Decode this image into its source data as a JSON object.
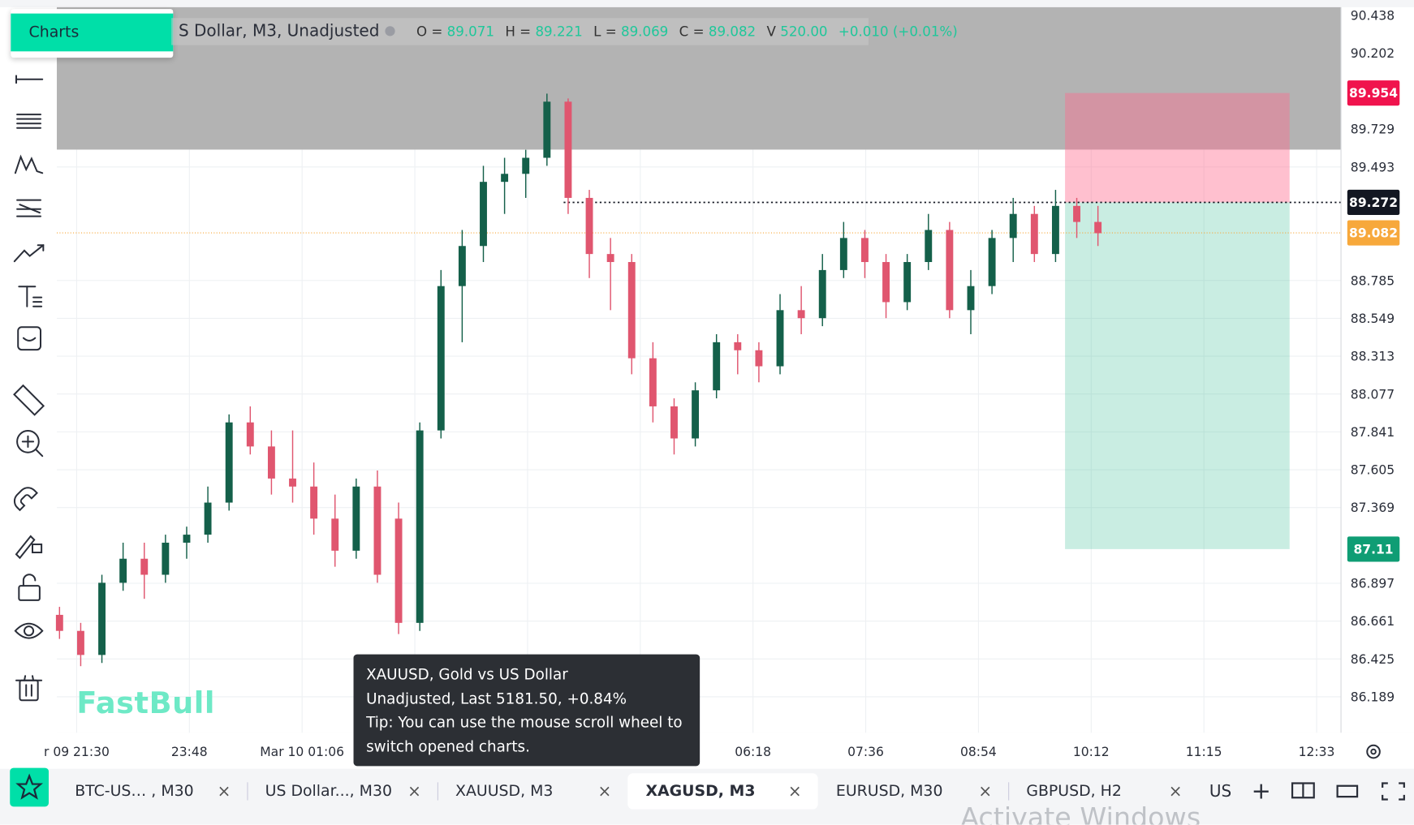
{
  "menu": {
    "item": "Charts"
  },
  "legend": {
    "symbol": "S Dollar, M3, Unadjusted",
    "ohlc": [
      {
        "key": "O =",
        "value": "89.071"
      },
      {
        "key": "H =",
        "value": "89.221"
      },
      {
        "key": "L =",
        "value": "89.069"
      },
      {
        "key": "C =",
        "value": "89.082"
      },
      {
        "key": "V",
        "value": "520.00"
      }
    ],
    "change": "+0.010 (+0.01%)"
  },
  "price_axis": {
    "range": [
      85.965,
      90.489
    ],
    "ticks": [
      90.438,
      90.202,
      89.729,
      89.493,
      88.785,
      88.549,
      88.313,
      88.077,
      87.841,
      87.605,
      87.369,
      86.897,
      86.661,
      86.425,
      86.189
    ]
  },
  "time_axis": {
    "labels": [
      "r 09 21:30",
      "23:48",
      "Mar 10 01:06",
      null,
      null,
      null,
      "06:18",
      "07:36",
      "08:54",
      "10:12",
      "11:15",
      "12:33"
    ]
  },
  "badges": [
    {
      "value": 89.954,
      "color": "#f0134d",
      "text_color": "#ffffff"
    },
    {
      "value": 89.272,
      "color": "#131722",
      "text_color": "#ffffff"
    },
    {
      "value": 89.082,
      "color": "#f7a83b",
      "text_color": "#ffffff"
    },
    {
      "value": 87.11,
      "color": "#0f9d74",
      "text_color": "#ffffff"
    }
  ],
  "candles": [
    [
      86.7,
      86.75,
      86.55,
      86.6
    ],
    [
      86.6,
      86.65,
      86.38,
      86.45
    ],
    [
      86.45,
      86.95,
      86.4,
      86.9
    ],
    [
      86.9,
      87.15,
      86.85,
      87.05
    ],
    [
      87.05,
      87.15,
      86.8,
      86.95
    ],
    [
      86.95,
      87.2,
      86.9,
      87.15
    ],
    [
      87.15,
      87.25,
      87.05,
      87.2
    ],
    [
      87.2,
      87.5,
      87.15,
      87.4
    ],
    [
      87.4,
      87.95,
      87.35,
      87.9
    ],
    [
      87.9,
      88.0,
      87.7,
      87.75
    ],
    [
      87.75,
      87.85,
      87.45,
      87.55
    ],
    [
      87.55,
      87.85,
      87.4,
      87.5
    ],
    [
      87.5,
      87.65,
      87.2,
      87.3
    ],
    [
      87.3,
      87.45,
      87.0,
      87.1
    ],
    [
      87.1,
      87.55,
      87.05,
      87.5
    ],
    [
      87.5,
      87.6,
      86.9,
      86.95
    ],
    [
      87.3,
      87.4,
      86.58,
      86.65
    ],
    [
      86.65,
      87.9,
      86.6,
      87.85
    ],
    [
      87.85,
      88.85,
      87.8,
      88.75
    ],
    [
      88.75,
      89.1,
      88.4,
      89.0
    ],
    [
      89.0,
      89.5,
      88.9,
      89.4
    ],
    [
      89.4,
      89.55,
      89.2,
      89.45
    ],
    [
      89.45,
      89.6,
      89.3,
      89.55
    ],
    [
      89.55,
      89.95,
      89.5,
      89.9
    ],
    [
      89.9,
      89.92,
      89.2,
      89.3
    ],
    [
      89.3,
      89.35,
      88.8,
      88.95
    ],
    [
      88.95,
      89.05,
      88.6,
      88.9
    ],
    [
      88.9,
      88.95,
      88.2,
      88.3
    ],
    [
      88.3,
      88.4,
      87.9,
      88.0
    ],
    [
      88.0,
      88.05,
      87.7,
      87.8
    ],
    [
      87.8,
      88.15,
      87.75,
      88.1
    ],
    [
      88.1,
      88.45,
      88.05,
      88.4
    ],
    [
      88.4,
      88.45,
      88.2,
      88.35
    ],
    [
      88.35,
      88.4,
      88.15,
      88.25
    ],
    [
      88.25,
      88.7,
      88.2,
      88.6
    ],
    [
      88.6,
      88.75,
      88.45,
      88.55
    ],
    [
      88.55,
      88.95,
      88.5,
      88.85
    ],
    [
      88.85,
      89.15,
      88.8,
      89.05
    ],
    [
      89.05,
      89.1,
      88.8,
      88.9
    ],
    [
      88.9,
      88.95,
      88.55,
      88.65
    ],
    [
      88.65,
      88.95,
      88.6,
      88.9
    ],
    [
      88.9,
      89.2,
      88.85,
      89.1
    ],
    [
      89.1,
      89.15,
      88.55,
      88.6
    ],
    [
      88.6,
      88.85,
      88.45,
      88.75
    ],
    [
      88.75,
      89.1,
      88.7,
      89.05
    ],
    [
      89.05,
      89.3,
      88.9,
      89.2
    ],
    [
      89.2,
      89.25,
      88.9,
      88.95
    ],
    [
      88.95,
      89.35,
      88.9,
      89.25
    ],
    [
      89.25,
      89.3,
      89.05,
      89.15
    ],
    [
      89.15,
      89.25,
      89.0,
      89.08
    ]
  ],
  "candle_colors": {
    "up": "#14604a",
    "down": "#e0566f"
  },
  "tooltip": [
    "XAUUSD, Gold vs US Dollar",
    "Unadjusted, Last 5181.50, +0.84%",
    "Tip: You can use the mouse scroll wheel to",
    "switch opened charts."
  ],
  "watermark": "FastBull",
  "tabs": [
    {
      "label": "BTC-US… , M30",
      "close": "×"
    },
    {
      "label": "US Dollar..., M30",
      "close": "×"
    },
    {
      "label": "XAUUSD, M3",
      "close": "×"
    },
    {
      "label": "XAGUSD, M3",
      "close": "×",
      "active": true
    },
    {
      "label": "EURUSD, M30",
      "close": "×"
    },
    {
      "label": "GBPUSD, H2",
      "close": "×"
    }
  ],
  "tab_tools": [
    "US",
    "+"
  ],
  "os_watermark": "Activate Windows"
}
